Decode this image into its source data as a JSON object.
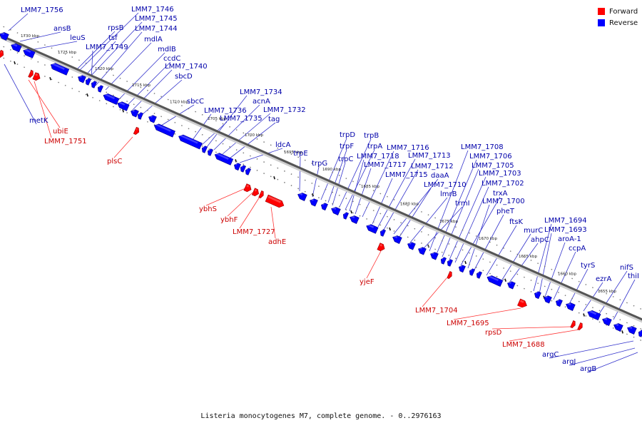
{
  "colors": {
    "forward": "#ff0000",
    "reverse": "#0000ff",
    "axis": "#555555",
    "forward_label": "#cc0000",
    "reverse_label": "#0000aa",
    "forward_line": "#ff3333",
    "reverse_line": "#3333cc"
  },
  "legend": {
    "forward_label": "Forward",
    "reverse_label": "Reverse"
  },
  "caption": "Listeria monocytogenes M7, complete genome. - 0..2976163",
  "axis": {
    "ticks": [
      "1730 kbp",
      "1725 kbp",
      "1720 kbp",
      "1715 kbp",
      "1710 kbp",
      "1705 kbp",
      "1700 kbp",
      "1695 kbp",
      "1690 kbp",
      "1685 kbp",
      "1680 kbp",
      "1675 kbp",
      "1670 kbp",
      "1665 kbp",
      "1660 kbp",
      "1655 kbp"
    ]
  },
  "reverse_labels": [
    "LMM7_1756",
    "ansB",
    "leuS",
    "rpsB",
    "tsf",
    "LMM7_1749",
    "LMM7_1746",
    "LMM7_1745",
    "LMM7_1744",
    "mdlA",
    "mdlB",
    "ccdC",
    "LMM7_1740",
    "sbcD",
    "sbcC",
    "LMM7_1736",
    "LMM7_1735",
    "LMM7_1734",
    "acnA",
    "LMM7_1732",
    "tag",
    "ldcA",
    "trpE",
    "trpG",
    "trpD",
    "trpF",
    "trpC",
    "trpB",
    "trpA",
    "LMM7_1718",
    "LMM7_1717",
    "LMM7_1716",
    "LMM7_1715",
    "LMM7_1713",
    "LMM7_1712",
    "daaA",
    "LMM7_1710",
    "lmrB",
    "trmI",
    "LMM7_1708",
    "LMM7_1706",
    "LMM7_1705",
    "LMM7_1703",
    "LMM7_1702",
    "trxA",
    "LMM7_1700",
    "pheT",
    "ftsK",
    "murC",
    "ahpC",
    "LMM7_1694",
    "LMM7_1693",
    "aroA-1",
    "ccpA",
    "tyrS",
    "ezrA",
    "nifS",
    "thiI",
    "metK",
    "argC",
    "argJ",
    "argB"
  ],
  "forward_labels": [
    "ubiE",
    "LMM7_1751",
    "plsC",
    "ybhS",
    "ybhF",
    "LMM7_1727",
    "adhE",
    "yjeF",
    "LMM7_1704",
    "LMM7_1695",
    "rpsD",
    "LMM7_1688"
  ]
}
